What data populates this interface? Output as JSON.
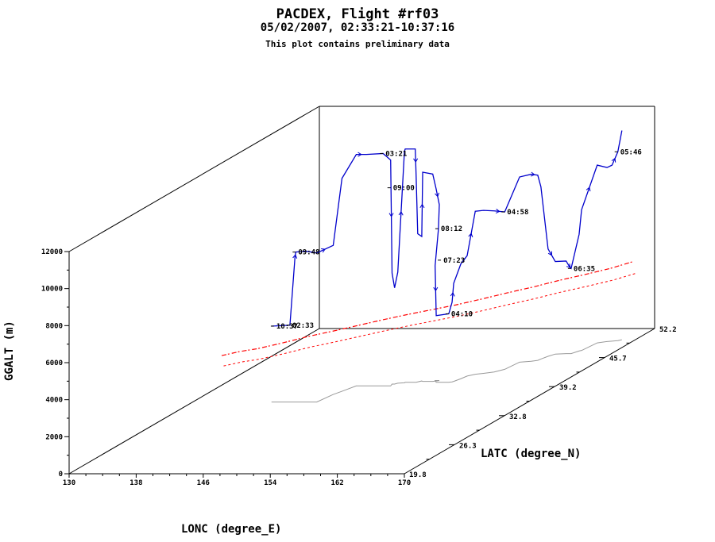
{
  "header": {
    "title": "PACDEX, Flight #rf03",
    "subtitle": "05/02/2007, 02:33:21-10:37:16",
    "note": "This plot contains preliminary data"
  },
  "chart_data": {
    "type": "scatter",
    "projection": "3d",
    "title": "PACDEX, Flight #rf03",
    "subtitle": "05/02/2007, 02:33:21-10:37:16",
    "xlabel": "LONC (degree_E)",
    "ylabel": "LATC (degree_N)",
    "zlabel": "GGALT (m)",
    "xlim": [
      130,
      170
    ],
    "ylim": [
      19.8,
      52.2
    ],
    "zlim": [
      0,
      12000
    ],
    "x_ticks": [
      "130",
      "138",
      "146",
      "154",
      "162",
      "170"
    ],
    "y_ticks": [
      "19.8",
      "26.3",
      "32.8",
      "39.2",
      "45.7",
      "52.2"
    ],
    "z_ticks": [
      "0",
      "2000",
      "4000",
      "6000",
      "8000",
      "10000",
      "12000"
    ],
    "colors": {
      "track": "#0000cc",
      "ground_track": "#ff0000",
      "shadow": "#999999",
      "frame": "#000000"
    },
    "flight_track": [
      [
        139.4,
        35.8,
        4100
      ],
      [
        141.6,
        35.8,
        4150
      ],
      [
        142.2,
        35.8,
        7800
      ],
      [
        142.3,
        35.8,
        8100
      ],
      [
        143.5,
        35.8,
        8150
      ],
      [
        144.8,
        35.8,
        8050
      ],
      [
        145.2,
        37.5,
        8050
      ],
      [
        145.6,
        38.2,
        11500
      ],
      [
        146.2,
        39.4,
        12500
      ],
      [
        147.4,
        39.4,
        12500
      ],
      [
        149.4,
        39.4,
        12550
      ],
      [
        150.3,
        39.4,
        12200
      ],
      [
        150.1,
        39.8,
        6000
      ],
      [
        150.4,
        39.8,
        5200
      ],
      [
        150.6,
        40.0,
        6000
      ],
      [
        151.3,
        40.1,
        12500
      ],
      [
        151.3,
        40.2,
        12600
      ],
      [
        152.5,
        40.2,
        12600
      ],
      [
        152.6,
        40.2,
        11200
      ],
      [
        152.7,
        40.3,
        8000
      ],
      [
        153.0,
        40.5,
        7800
      ],
      [
        153.2,
        40.4,
        11300
      ],
      [
        154.4,
        40.4,
        11200
      ],
      [
        154.7,
        40.5,
        10400
      ],
      [
        155.0,
        40.6,
        9500
      ],
      [
        154.9,
        40.6,
        8200
      ],
      [
        154.5,
        40.6,
        6200
      ],
      [
        155.0,
        40.2,
        3600
      ],
      [
        156.5,
        40.2,
        3700
      ],
      [
        156.8,
        40.3,
        4300
      ],
      [
        156.9,
        40.4,
        5300
      ],
      [
        157.2,
        41.0,
        6200
      ],
      [
        157.4,
        41.6,
        6500
      ],
      [
        158.0,
        42.0,
        8800
      ],
      [
        158.8,
        42.2,
        8800
      ],
      [
        159.8,
        42.5,
        8700
      ],
      [
        160.5,
        43.1,
        8500
      ],
      [
        160.8,
        44.7,
        10000
      ],
      [
        162.0,
        44.9,
        10100
      ],
      [
        162.6,
        45.1,
        10000
      ],
      [
        162.7,
        45.4,
        9300
      ],
      [
        163.0,
        46.0,
        5800
      ],
      [
        163.4,
        46.5,
        5000
      ],
      [
        164.6,
        46.6,
        5000
      ],
      [
        165.0,
        46.6,
        4700
      ],
      [
        165.2,
        46.6,
        4600
      ],
      [
        165.6,
        47.2,
        6300
      ],
      [
        165.8,
        47.3,
        7600
      ],
      [
        166.1,
        49.0,
        9600
      ],
      [
        167.0,
        49.3,
        9400
      ],
      [
        167.5,
        49.4,
        9500
      ],
      [
        168.1,
        49.5,
        10200
      ],
      [
        168.4,
        49.7,
        11300
      ]
    ],
    "time_labels": [
      {
        "text": "02:33",
        "lon": 141.6,
        "lat": 35.8,
        "alt": 4150
      },
      {
        "text": "03:21",
        "lon": 149.4,
        "lat": 39.4,
        "alt": 12550
      },
      {
        "text": "04:10",
        "lon": 156.5,
        "lat": 40.2,
        "alt": 3700
      },
      {
        "text": "04:58",
        "lon": 160.5,
        "lat": 43.1,
        "alt": 8500
      },
      {
        "text": "05:46",
        "lon": 168.1,
        "lat": 49.5,
        "alt": 10200
      },
      {
        "text": "06:35",
        "lon": 165.2,
        "lat": 46.6,
        "alt": 4600
      },
      {
        "text": "07:23",
        "lon": 155.2,
        "lat": 40.6,
        "alt": 6500
      },
      {
        "text": "08:12",
        "lon": 154.9,
        "lat": 40.6,
        "alt": 8200
      },
      {
        "text": "09:00",
        "lon": 150.3,
        "lat": 39.4,
        "alt": 10700
      },
      {
        "text": "09:48",
        "lon": 142.3,
        "lat": 35.8,
        "alt": 8100
      },
      {
        "text": "10:37",
        "lon": 139.7,
        "lat": 35.8,
        "alt": 4100
      }
    ],
    "ground_track": [
      [
        136.5,
        32.5
      ],
      [
        138.0,
        33.3
      ],
      [
        139.5,
        33.8
      ],
      [
        141.5,
        34.9
      ],
      [
        143.5,
        36.2
      ],
      [
        145.5,
        37.2
      ],
      [
        147.5,
        38.3
      ],
      [
        149.5,
        39.4
      ],
      [
        151.5,
        40.4
      ],
      [
        153.5,
        41.3
      ],
      [
        155.5,
        42.2
      ],
      [
        157.5,
        43.3
      ],
      [
        159.5,
        44.5
      ],
      [
        161.5,
        45.6
      ],
      [
        163.5,
        46.9
      ],
      [
        165.5,
        48.0
      ],
      [
        167.5,
        49.2
      ],
      [
        169.0,
        50.5
      ]
    ],
    "grid": false,
    "legend": "none"
  }
}
